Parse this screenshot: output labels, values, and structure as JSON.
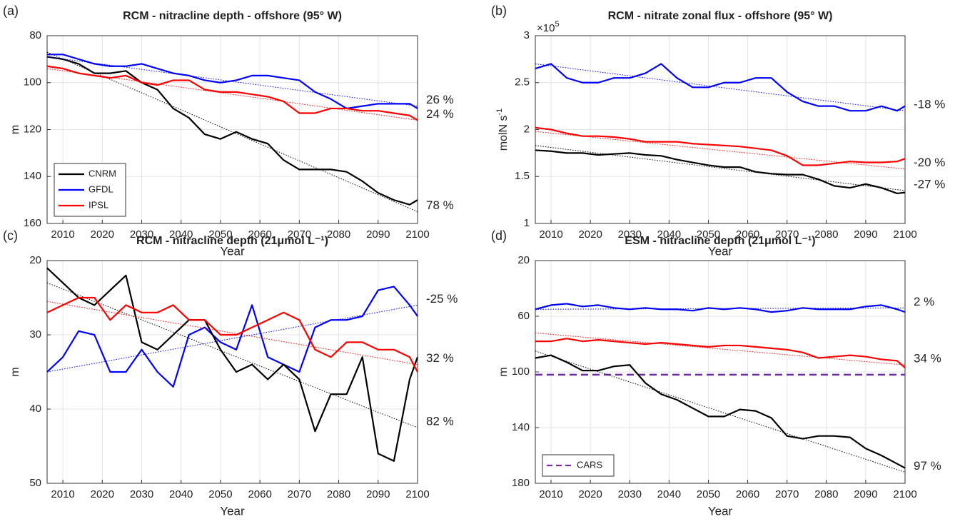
{
  "chart_data": [
    {
      "type": "line",
      "panel_label": "(a)",
      "title": "RCM - nitracline depth - offshore (95° W)",
      "xlabel": "Year",
      "ylabel": "m",
      "x": [
        2006,
        2010,
        2014,
        2018,
        2022,
        2026,
        2030,
        2034,
        2038,
        2042,
        2046,
        2050,
        2054,
        2058,
        2062,
        2066,
        2070,
        2074,
        2078,
        2082,
        2086,
        2090,
        2094,
        2098,
        2100
      ],
      "xlim": [
        2006,
        2100
      ],
      "xticks": [
        2010,
        2020,
        2030,
        2040,
        2050,
        2060,
        2070,
        2080,
        2090,
        2100
      ],
      "ylim": [
        80,
        160
      ],
      "yticks": [
        80,
        100,
        120,
        140,
        160
      ],
      "y_reversed": true,
      "grid": true,
      "legend": "lower left",
      "trend_x": [
        2006,
        2100
      ],
      "series": [
        {
          "name": "CNRM",
          "color": "#000000",
          "values": [
            89,
            90,
            92,
            96,
            96,
            95,
            100,
            103,
            111,
            115,
            122,
            124,
            121,
            124,
            126,
            133,
            137,
            137,
            137,
            138,
            142,
            147,
            150,
            152,
            150
          ],
          "trend": [
            87,
            155
          ],
          "trend_label": "78 %"
        },
        {
          "name": "GFDL",
          "color": "#0000ff",
          "values": [
            88,
            88,
            90,
            92,
            93,
            93,
            92,
            94,
            96,
            97,
            99,
            100,
            99,
            97,
            97,
            98,
            99,
            104,
            107,
            111,
            110,
            109,
            109,
            109,
            111
          ],
          "trend": [
            89,
            110
          ],
          "trend_label": "26 %"
        },
        {
          "name": "IPSL",
          "color": "#ff0000",
          "values": [
            93,
            94,
            96,
            97,
            98,
            97,
            100,
            101,
            99,
            99,
            103,
            104,
            104,
            105,
            106,
            108,
            113,
            113,
            111,
            111,
            112,
            112,
            113,
            114,
            116
          ],
          "trend": [
            94,
            116
          ],
          "trend_label": "24 %"
        }
      ]
    },
    {
      "type": "line",
      "panel_label": "(b)",
      "title": "RCM - nitrate zonal flux - offshore (95° W)",
      "xlabel": "Year",
      "ylabel": "molN s",
      "ylabel_sup": "-1",
      "multiplier": "×10",
      "multiplier_sup": "5",
      "x": [
        2006,
        2010,
        2014,
        2018,
        2022,
        2026,
        2030,
        2034,
        2038,
        2042,
        2046,
        2050,
        2054,
        2058,
        2062,
        2066,
        2070,
        2074,
        2078,
        2082,
        2086,
        2090,
        2094,
        2098,
        2100
      ],
      "xlim": [
        2006,
        2100
      ],
      "xticks": [
        2010,
        2020,
        2030,
        2040,
        2050,
        2060,
        2070,
        2080,
        2090,
        2100
      ],
      "ylim": [
        1,
        3
      ],
      "yticks": [
        1,
        1.5,
        2,
        2.5,
        3
      ],
      "y_reversed": false,
      "grid": true,
      "trend_x": [
        2006,
        2100
      ],
      "series": [
        {
          "color": "#0000ff",
          "values": [
            2.65,
            2.7,
            2.55,
            2.5,
            2.5,
            2.55,
            2.55,
            2.6,
            2.7,
            2.55,
            2.45,
            2.45,
            2.5,
            2.5,
            2.55,
            2.55,
            2.4,
            2.3,
            2.25,
            2.25,
            2.2,
            2.2,
            2.25,
            2.2,
            2.25
          ],
          "trend": [
            2.7,
            2.2
          ],
          "trend_label": "-18 %"
        },
        {
          "color": "#ff0000",
          "values": [
            2.02,
            2.0,
            1.96,
            1.93,
            1.93,
            1.92,
            1.9,
            1.87,
            1.87,
            1.87,
            1.85,
            1.84,
            1.83,
            1.82,
            1.8,
            1.78,
            1.72,
            1.62,
            1.62,
            1.64,
            1.66,
            1.65,
            1.65,
            1.66,
            1.69
          ],
          "trend": [
            1.98,
            1.58
          ],
          "trend_label": "-20 %"
        },
        {
          "color": "#000000",
          "values": [
            1.78,
            1.77,
            1.75,
            1.75,
            1.73,
            1.74,
            1.75,
            1.73,
            1.72,
            1.68,
            1.65,
            1.62,
            1.6,
            1.6,
            1.55,
            1.53,
            1.52,
            1.52,
            1.47,
            1.4,
            1.38,
            1.42,
            1.38,
            1.32,
            1.33
          ],
          "trend": [
            1.83,
            1.35
          ],
          "trend_label": "-27 %"
        }
      ]
    },
    {
      "type": "line",
      "panel_label": "(c)",
      "title": "RCM - nitracline depth (21μmol L⁻¹)",
      "xlabel": "Year",
      "ylabel": "m",
      "x": [
        2006,
        2010,
        2014,
        2018,
        2022,
        2026,
        2030,
        2034,
        2038,
        2042,
        2046,
        2050,
        2054,
        2058,
        2062,
        2066,
        2070,
        2074,
        2078,
        2082,
        2086,
        2090,
        2094,
        2098,
        2100
      ],
      "xlim": [
        2006,
        2100
      ],
      "xticks": [
        2010,
        2020,
        2030,
        2040,
        2050,
        2060,
        2070,
        2080,
        2090,
        2100
      ],
      "ylim": [
        20,
        50
      ],
      "yticks": [
        20,
        30,
        40,
        50
      ],
      "y_reversed": true,
      "grid": true,
      "trend_x": [
        2006,
        2100
      ],
      "series": [
        {
          "color": "#0000ff",
          "values": [
            35,
            33,
            29.5,
            30,
            35,
            35,
            32,
            35,
            37,
            30,
            29,
            31,
            32,
            26,
            33,
            34,
            35,
            29,
            28,
            28,
            27.5,
            24,
            23.5,
            26,
            27.5
          ],
          "trend": [
            35,
            26
          ],
          "trend_label": "-25 %"
        },
        {
          "color": "#000000",
          "values": [
            21,
            23,
            25,
            26,
            24,
            22,
            31,
            32,
            30,
            28,
            28,
            32,
            35,
            34,
            36,
            34,
            36,
            43,
            38,
            38,
            33,
            46,
            47,
            36,
            33
          ],
          "trend": [
            23,
            42.5
          ],
          "trend_label": "82 %"
        },
        {
          "color": "#ff0000",
          "values": [
            27,
            26,
            25,
            25,
            28,
            26,
            27,
            27,
            26,
            28,
            28,
            30,
            30,
            29,
            28,
            27,
            28,
            32,
            33,
            31,
            31,
            32,
            32,
            33,
            35
          ],
          "trend": [
            25.5,
            34
          ],
          "trend_label": "32 %"
        }
      ]
    },
    {
      "type": "line",
      "panel_label": "(d)",
      "title": "ESM - nitracline depth (21μmol L⁻¹)",
      "xlabel": "Year",
      "ylabel": "m",
      "x": [
        2006,
        2010,
        2014,
        2018,
        2022,
        2026,
        2030,
        2034,
        2038,
        2042,
        2046,
        2050,
        2054,
        2058,
        2062,
        2066,
        2070,
        2074,
        2078,
        2082,
        2086,
        2090,
        2094,
        2098,
        2100
      ],
      "xlim": [
        2006,
        2100
      ],
      "xticks": [
        2010,
        2020,
        2030,
        2040,
        2050,
        2060,
        2070,
        2080,
        2090,
        2100
      ],
      "ylim": [
        20,
        180
      ],
      "yticks": [
        20,
        60,
        100,
        140,
        180
      ],
      "y_reversed": true,
      "grid": true,
      "legend": "lower left",
      "trend_x": [
        2006,
        2100
      ],
      "reference": {
        "name": "CARS",
        "value": 102,
        "color": "#7030a0"
      },
      "series": [
        {
          "color": "#0000ff",
          "values": [
            55,
            52,
            51,
            53,
            52,
            54,
            55,
            54,
            55,
            55,
            56,
            54,
            55,
            54,
            55,
            57,
            56,
            54,
            55,
            55,
            55,
            53,
            52,
            55,
            57
          ],
          "trend": [
            55,
            54
          ],
          "trend_label": "2 %"
        },
        {
          "color": "#ff0000",
          "values": [
            78,
            78,
            76,
            78,
            77,
            78,
            79,
            80,
            79,
            80,
            81,
            82,
            81,
            81,
            82,
            83,
            84,
            86,
            90,
            89,
            88,
            89,
            91,
            92,
            97
          ],
          "trend": [
            72,
            95
          ],
          "trend_label": "34 %"
        },
        {
          "color": "#000000",
          "values": [
            90,
            88,
            93,
            99,
            99,
            96,
            95,
            108,
            116,
            120,
            126,
            132,
            132,
            127,
            128,
            133,
            146,
            148,
            146,
            146,
            147,
            155,
            160,
            166,
            169
          ],
          "trend": [
            85,
            172
          ],
          "trend_label": "97 %"
        }
      ]
    }
  ]
}
